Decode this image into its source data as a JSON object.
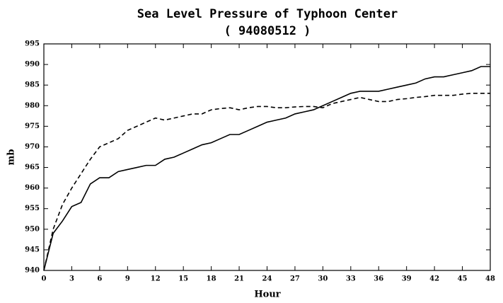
{
  "chart_data": {
    "type": "line",
    "title": "Sea Level Pressure of Typhoon Center",
    "subtitle": "( 94080512 )",
    "x_label": "Hour",
    "y_label": "mb",
    "x": [
      0,
      1,
      2,
      3,
      4,
      5,
      6,
      7,
      8,
      9,
      10,
      11,
      12,
      13,
      14,
      15,
      16,
      17,
      18,
      19,
      20,
      21,
      22,
      23,
      24,
      25,
      26,
      27,
      28,
      29,
      30,
      31,
      32,
      33,
      34,
      35,
      36,
      37,
      38,
      39,
      40,
      41,
      42,
      43,
      44,
      45,
      46,
      47,
      48
    ],
    "series": [
      {
        "color": "#000000",
        "dash": "solid",
        "values": [
          940,
          949,
          952,
          955.5,
          956.5,
          961,
          962.5,
          962.5,
          964,
          964.5,
          965,
          965.5,
          965.5,
          967,
          967.5,
          968.5,
          969.5,
          970.5,
          971,
          972,
          973,
          973,
          974,
          975,
          976,
          976.5,
          977,
          978,
          978.5,
          979,
          980,
          981,
          982,
          983,
          983.5,
          983.5,
          983.5,
          984,
          984.5,
          985,
          985.5,
          986.5,
          987,
          987,
          987.5,
          988,
          988.5,
          989.5,
          989.5
        ]
      },
      {
        "color": "#000000",
        "dash": "dashed",
        "values": [
          940,
          950,
          956,
          960,
          963.5,
          967,
          970,
          971,
          972,
          974,
          975,
          976,
          977,
          976.5,
          977,
          977.5,
          978,
          978,
          979,
          979.3,
          979.5,
          979,
          979.5,
          979.8,
          979.8,
          979.5,
          979.5,
          979.7,
          979.8,
          979.8,
          979.5,
          980.5,
          981,
          981.5,
          982,
          981.5,
          981,
          981,
          981.5,
          981.7,
          982,
          982.2,
          982.5,
          982.5,
          982.5,
          982.8,
          983,
          983,
          983
        ]
      }
    ],
    "xlim": [
      0,
      48
    ],
    "xticks": [
      0,
      3,
      6,
      9,
      12,
      15,
      18,
      21,
      24,
      27,
      30,
      33,
      36,
      39,
      42,
      45,
      48
    ],
    "ylim": [
      940,
      995
    ],
    "yticks": [
      940,
      945,
      950,
      955,
      960,
      965,
      970,
      975,
      980,
      985,
      990,
      995
    ]
  }
}
